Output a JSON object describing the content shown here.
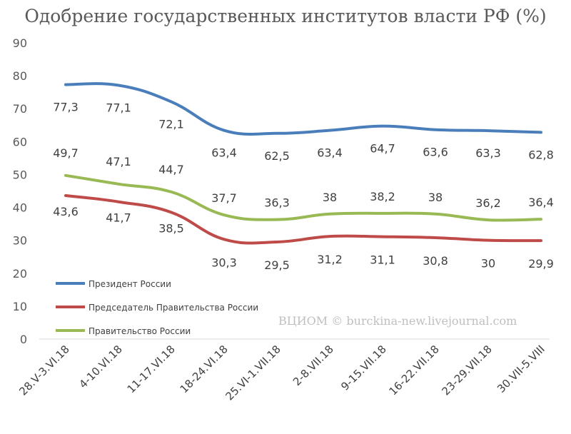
{
  "title": "Одобрение государственных институтов власти РФ (%)",
  "watermark": "ВЦИОМ © burckina-new.livejournal.com",
  "chart_data": {
    "type": "line",
    "categories": [
      "28.V-3.VI.18",
      "4-10.VI.18",
      "11-17.VI.18",
      "18-24.VI.18",
      "25.VI-1.VII.18",
      "2-8.VII.18",
      "9-15.VII.18",
      "16-22.VII.18",
      "23-29.VII.18",
      "30.VII-5.VIII"
    ],
    "ylim": [
      0,
      90
    ],
    "yticks": [
      0,
      10,
      20,
      30,
      40,
      50,
      60,
      70,
      80,
      90
    ],
    "grid": false,
    "legend_position": "bottom-left",
    "series": [
      {
        "name": "Президент России",
        "color": "#4a7ebb",
        "values": [
          77.3,
          77.1,
          72.1,
          63.4,
          62.5,
          63.4,
          64.7,
          63.6,
          63.3,
          62.8
        ],
        "labels": [
          "77,3",
          "77,1",
          "72,1",
          "63,4",
          "62,5",
          "63,4",
          "64,7",
          "63,6",
          "63,3",
          "62,8"
        ]
      },
      {
        "name": "Председатель Правительства России",
        "color": "#be4b48",
        "values": [
          43.6,
          41.7,
          38.5,
          30.3,
          29.5,
          31.2,
          31.1,
          30.8,
          30,
          29.9
        ],
        "labels": [
          "43,6",
          "41,7",
          "38,5",
          "30,3",
          "29,5",
          "31,2",
          "31,1",
          "30,8",
          "30",
          "29,9"
        ]
      },
      {
        "name": "Правительство России",
        "color": "#98b954",
        "values": [
          49.7,
          47.1,
          44.7,
          37.7,
          36.3,
          38,
          38.2,
          38,
          36.2,
          36.4
        ],
        "labels": [
          "49,7",
          "47,1",
          "44,7",
          "37,7",
          "36,3",
          "38",
          "38,2",
          "38",
          "36,2",
          "36,4"
        ]
      }
    ]
  }
}
